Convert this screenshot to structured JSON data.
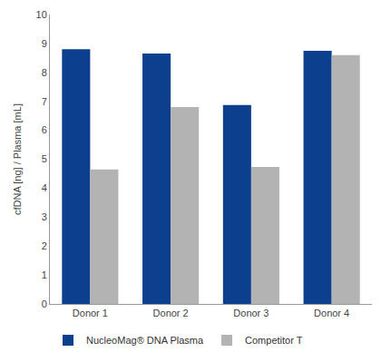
{
  "chart_data": {
    "type": "bar",
    "y_label": "cfDNA [ng] / Plasma [mL]",
    "categories": [
      "Donor 1",
      "Donor 2",
      "Donor 3",
      "Donor 4"
    ],
    "series": [
      {
        "name": "NucleoMag® DNA Plasma",
        "color": "#0d3f8f",
        "values": [
          8.8,
          8.65,
          6.87,
          8.75
        ]
      },
      {
        "name": "Competitor T",
        "color": "#b3b3b3",
        "values": [
          4.65,
          6.8,
          4.73,
          8.6
        ]
      }
    ],
    "ylim": [
      0,
      10
    ],
    "yticks": [
      0,
      1,
      2,
      3,
      4,
      5,
      6,
      7,
      8,
      9,
      10
    ],
    "grid": false,
    "legend": "bottom"
  }
}
